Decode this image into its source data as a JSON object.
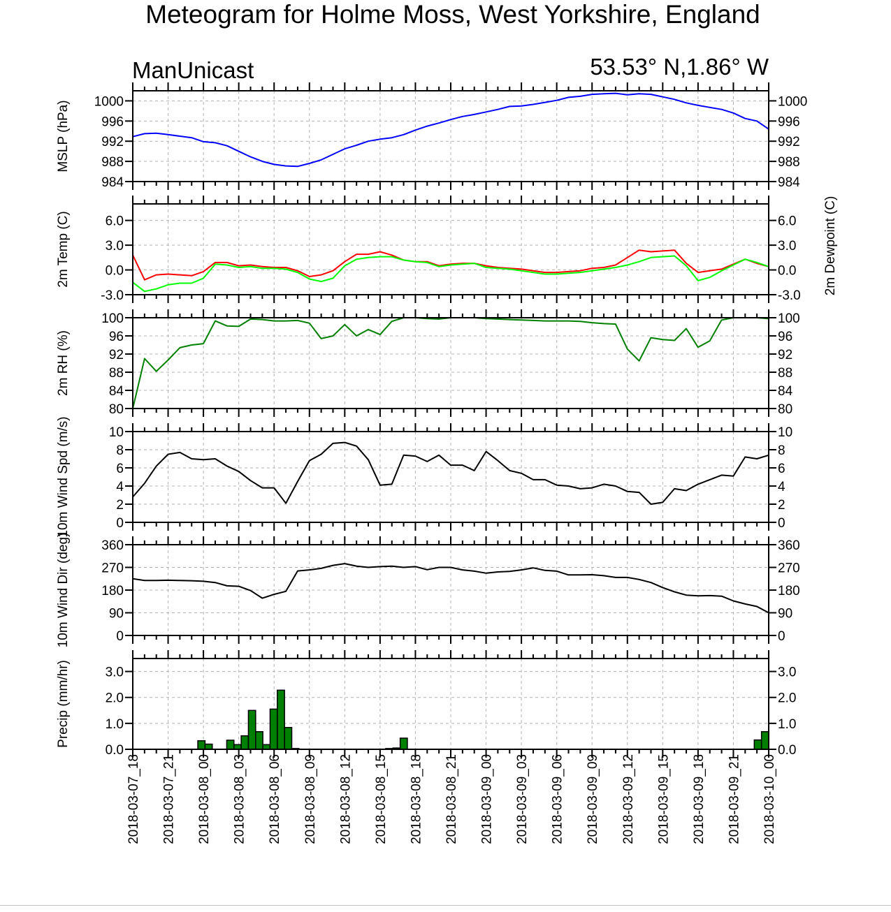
{
  "title": "Meteogram for Holme Moss, West Yorkshire, England",
  "model": "ManUnicast",
  "location": "53.53° N,1.86° W",
  "chart_data": [
    {
      "type": "line",
      "id": "mslp",
      "ylabel": "MSLP (hPa)",
      "ylim": [
        984,
        1002
      ],
      "yticks": [
        "984",
        "988",
        "992",
        "996",
        "1000"
      ],
      "grid": true,
      "series": [
        {
          "color": "#0000ff",
          "values": [
            992.9,
            993.5,
            993.6,
            993.3,
            993.0,
            992.7,
            991.9,
            991.7,
            991.1,
            990.0,
            988.9,
            988.0,
            987.4,
            987.1,
            987.0,
            987.6,
            988.3,
            989.4,
            990.5,
            991.2,
            992.0,
            992.4,
            992.7,
            993.3,
            994.2,
            995.0,
            995.6,
            996.3,
            996.9,
            997.3,
            997.8,
            998.3,
            998.9,
            999.0,
            999.3,
            999.7,
            1000.1,
            1000.7,
            1000.9,
            1001.3,
            1001.4,
            1001.5,
            1001.2,
            1001.4,
            1001.3,
            1000.8,
            1000.3,
            999.6,
            999.1,
            998.7,
            998.3,
            997.6,
            996.5,
            996.0,
            994.4
          ]
        }
      ]
    },
    {
      "type": "line",
      "id": "temp",
      "ylabel": "2m Temp (C)",
      "ylabel_right": "2m Dewpoint (C)",
      "ylim": [
        -3.0,
        8.0
      ],
      "yticks": [
        "-3.0",
        "0.0",
        "3.0",
        "6.0"
      ],
      "grid": true,
      "series": [
        {
          "color": "#ff0000",
          "values": [
            1.8,
            -1.2,
            -0.6,
            -0.5,
            -0.6,
            -0.7,
            -0.2,
            0.9,
            0.9,
            0.5,
            0.6,
            0.4,
            0.3,
            0.3,
            -0.1,
            -0.8,
            -0.6,
            -0.1,
            1.0,
            1.9,
            1.9,
            2.2,
            1.8,
            1.2,
            1.0,
            1.0,
            0.5,
            0.7,
            0.8,
            0.8,
            0.5,
            0.3,
            0.2,
            0.1,
            -0.1,
            -0.3,
            -0.3,
            -0.2,
            -0.1,
            0.2,
            0.3,
            0.6,
            1.5,
            2.4,
            2.2,
            2.3,
            2.4,
            0.8,
            -0.3,
            -0.1,
            0.1,
            0.7,
            1.3,
            0.8,
            0.4
          ]
        },
        {
          "color": "#00ff00",
          "values": [
            -1.5,
            -2.6,
            -2.3,
            -1.8,
            -1.6,
            -1.6,
            -1.0,
            0.7,
            0.6,
            0.3,
            0.4,
            0.2,
            0.2,
            0.1,
            -0.3,
            -1.1,
            -1.4,
            -1.0,
            0.5,
            1.3,
            1.5,
            1.6,
            1.6,
            1.2,
            1.0,
            0.9,
            0.4,
            0.6,
            0.7,
            0.8,
            0.3,
            0.2,
            0.1,
            -0.1,
            -0.3,
            -0.5,
            -0.5,
            -0.4,
            -0.3,
            -0.1,
            0.1,
            0.3,
            0.6,
            1.0,
            1.5,
            1.6,
            1.7,
            0.5,
            -1.3,
            -0.9,
            -0.1,
            0.6,
            1.3,
            0.9,
            0.4
          ]
        }
      ]
    },
    {
      "type": "line",
      "id": "rh",
      "ylabel": "2m RH (%)",
      "ylim": [
        80,
        100
      ],
      "yticks": [
        "80",
        "84",
        "88",
        "92",
        "96",
        "100"
      ],
      "grid": true,
      "series": [
        {
          "color": "#008000",
          "values": [
            80.0,
            91.0,
            88.2,
            90.7,
            93.4,
            94.0,
            94.3,
            99.3,
            98.2,
            98.1,
            99.7,
            99.6,
            99.3,
            99.3,
            99.4,
            98.8,
            95.4,
            96.0,
            98.5,
            96.0,
            97.4,
            96.3,
            99.2,
            100.0,
            100.0,
            99.8,
            99.7,
            100.0,
            100.0,
            100.0,
            99.8,
            99.7,
            99.6,
            99.5,
            99.4,
            99.3,
            99.3,
            99.3,
            99.2,
            98.9,
            98.7,
            98.6,
            93.1,
            90.5,
            95.6,
            95.2,
            95.0,
            97.6,
            93.5,
            94.9,
            99.5,
            100.0,
            100.0,
            100.0,
            99.8
          ]
        }
      ]
    },
    {
      "type": "line",
      "id": "wspd",
      "ylabel": "10m Wind Spd (m/s)",
      "ylim": [
        0,
        10
      ],
      "yticks": [
        "0",
        "2",
        "4",
        "6",
        "8",
        "10"
      ],
      "grid": true,
      "series": [
        {
          "color": "#000000",
          "values": [
            2.8,
            4.3,
            6.2,
            7.5,
            7.7,
            7.0,
            6.9,
            7.0,
            6.2,
            5.6,
            4.6,
            3.8,
            3.8,
            2.1,
            4.5,
            6.8,
            7.5,
            8.7,
            8.8,
            8.4,
            6.9,
            4.1,
            4.2,
            7.4,
            7.3,
            6.7,
            7.4,
            6.3,
            6.3,
            5.7,
            7.8,
            6.8,
            5.7,
            5.4,
            4.7,
            4.7,
            4.1,
            4.0,
            3.7,
            3.8,
            4.2,
            4.0,
            3.4,
            3.3,
            2.0,
            2.2,
            3.7,
            3.5,
            4.2,
            4.7,
            5.2,
            5.1,
            7.2,
            7.0,
            7.4
          ]
        }
      ]
    },
    {
      "type": "line",
      "id": "wdir",
      "ylabel": "10m Wind Dir (deg)",
      "ylim": [
        0,
        360
      ],
      "yticks": [
        "0",
        "90",
        "180",
        "270",
        "360"
      ],
      "grid": true,
      "series": [
        {
          "color": "#000000",
          "values": [
            225,
            218,
            218,
            219,
            218,
            217,
            215,
            210,
            197,
            195,
            178,
            148,
            163,
            175,
            256,
            260,
            266,
            278,
            285,
            275,
            270,
            273,
            275,
            270,
            273,
            261,
            270,
            270,
            260,
            255,
            247,
            252,
            254,
            260,
            268,
            258,
            255,
            240,
            240,
            241,
            237,
            230,
            230,
            222,
            210,
            190,
            173,
            160,
            157,
            158,
            156,
            137,
            125,
            115,
            90
          ]
        }
      ]
    },
    {
      "type": "bar",
      "id": "precip",
      "ylabel": "Precip (mm/hr)",
      "ylim": [
        0,
        3.5
      ],
      "yticks": [
        "0.0",
        "1.0",
        "2.0",
        "3.0"
      ],
      "grid": true,
      "bar_color": "#008000",
      "values": [
        0.0,
        0.0,
        0.0,
        0.0,
        0.0,
        0.0,
        0.0,
        0.0,
        0.0,
        0.33,
        0.2,
        0.0,
        0.0,
        0.35,
        0.18,
        0.52,
        1.5,
        0.68,
        0.18,
        1.55,
        2.28,
        0.84,
        0.03,
        0.0,
        0.0,
        0.0,
        0.0,
        0.0,
        0.0,
        0.0,
        0.0,
        0.0,
        0.0,
        0.0,
        0.0,
        0.03,
        0.05,
        0.43,
        0.0,
        0.0,
        0.0,
        0.0,
        0.0,
        0.0,
        0.0,
        0.0,
        0.0,
        0.0,
        0.0,
        0.0,
        0.0,
        0.0,
        0.0,
        0.0,
        0.0,
        0.0,
        0.0,
        0.0,
        0.0,
        0.0,
        0.0,
        0.0,
        0.0,
        0.0,
        0.0,
        0.0,
        0.0,
        0.0,
        0.0,
        0.0,
        0.0,
        0.0,
        0.0,
        0.0,
        0.0,
        0.0,
        0.0,
        0.0,
        0.0,
        0.0,
        0.0,
        0.0,
        0.0,
        0.0,
        0.0,
        0.0,
        0.36,
        0.68
      ],
      "x_tick_labels": [
        "2018-03-07_18",
        "2018-03-07_21",
        "2018-03-08_00",
        "2018-03-08_03",
        "2018-03-08_06",
        "2018-03-08_09",
        "2018-03-08_12",
        "2018-03-08_15",
        "2018-03-08_18",
        "2018-03-08_21",
        "2018-03-09_00",
        "2018-03-09_03",
        "2018-03-09_06",
        "2018-03-09_09",
        "2018-03-09_12",
        "2018-03-09_15",
        "2018-03-09_18",
        "2018-03-09_21",
        "2018-03-10_00"
      ]
    }
  ]
}
